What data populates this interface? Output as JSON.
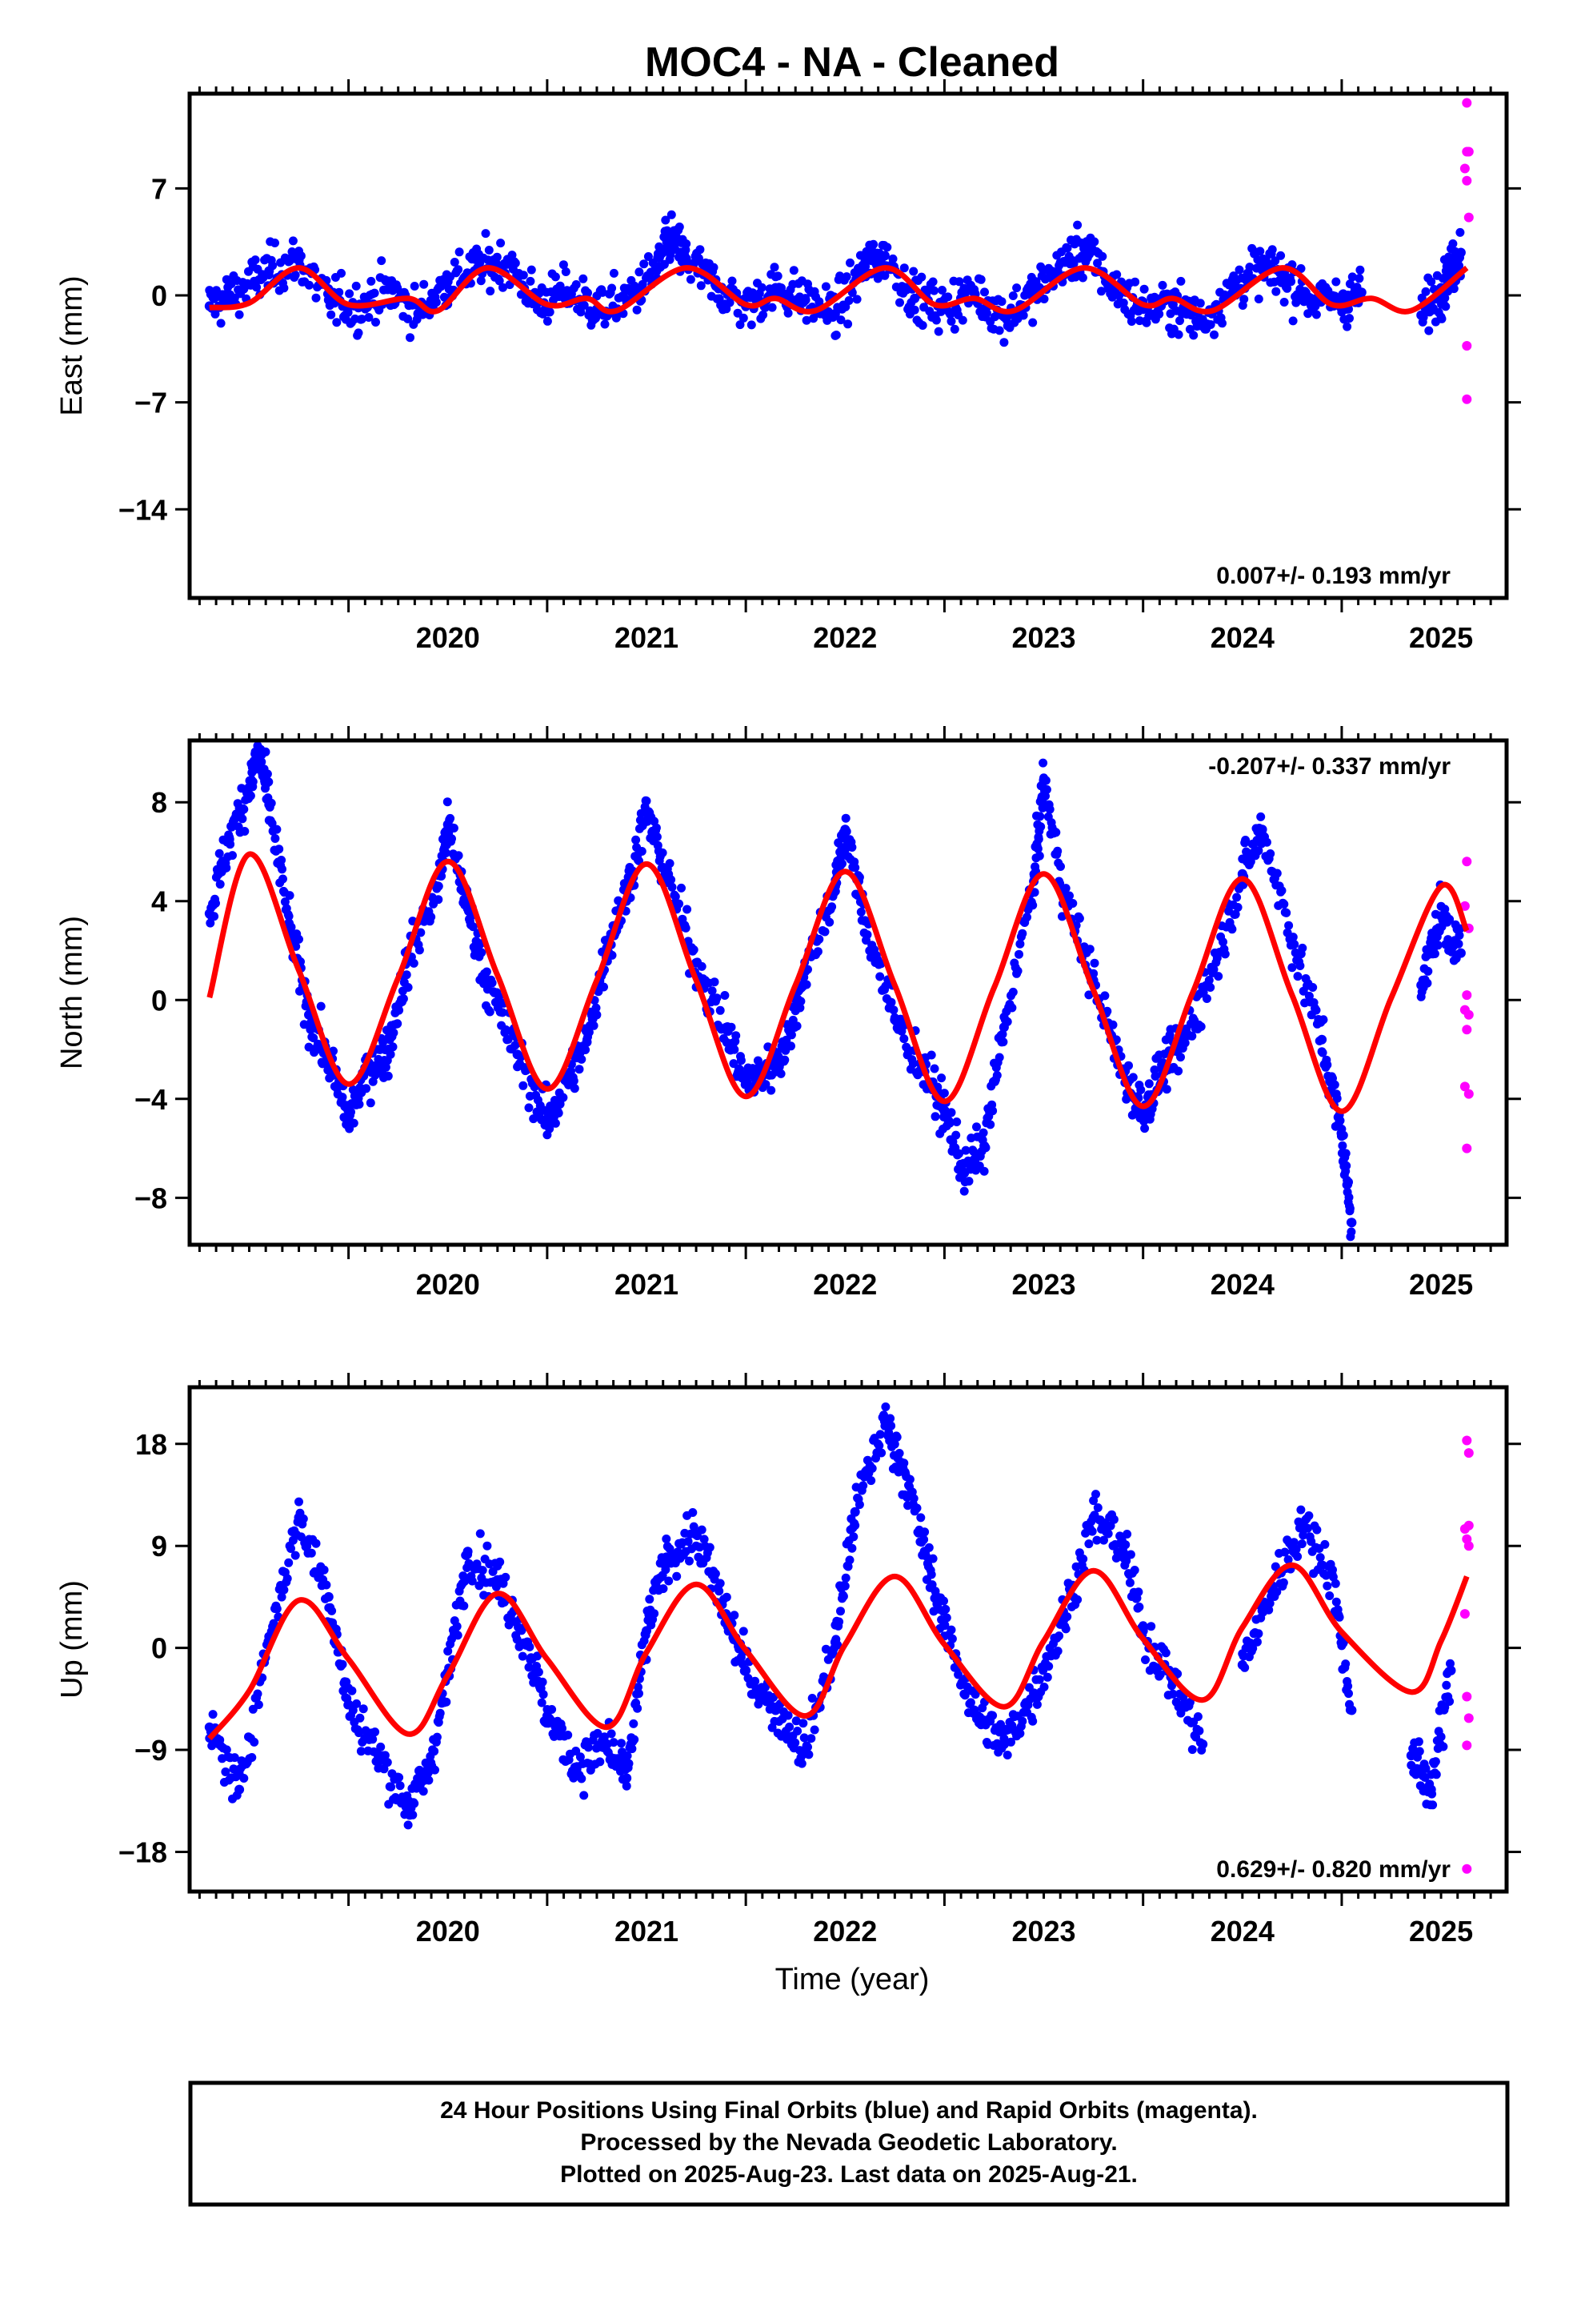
{
  "title": "MOC4  - NA - Cleaned",
  "xlabel": "Time (year)",
  "colors": {
    "final": "#0000ff",
    "rapid": "#ff00ff",
    "model": "#ff0000"
  },
  "footer": {
    "line1": "24 Hour Positions Using Final Orbits (blue) and Rapid Orbits (magenta).",
    "line2": "Processed by the Nevada Geodetic Laboratory.",
    "line3": "Plotted on 2025-Aug-23. Last data on 2025-Aug-21."
  },
  "chart_data": [
    {
      "type": "scatter",
      "ylabel": "East (mm)",
      "xlim": [
        2019.2,
        2025.83
      ],
      "ylim": [
        -19.8,
        13.2
      ],
      "yticks": [
        7,
        0,
        -7,
        -14
      ],
      "ytick_labels": [
        "7",
        "0",
        "−7",
        "−14"
      ],
      "xticks": [
        2020,
        2021,
        2022,
        2023,
        2024,
        2025
      ],
      "rate_label": "0.007+/- 0.193 mm/yr",
      "model": {
        "x": [
          2019.3,
          2019.5,
          2019.75,
          2020.0,
          2020.3,
          2020.45,
          2020.7,
          2021.0,
          2021.2,
          2021.35,
          2021.7,
          2022.0,
          2022.15,
          2022.35,
          2022.7,
          2022.95,
          2023.15,
          2023.35,
          2023.7,
          2024.0,
          2024.15,
          2024.35,
          2024.7,
          2024.95,
          2025.15,
          2025.35,
          2025.63
        ],
        "y": [
          -0.8,
          -0.5,
          1.8,
          -0.6,
          -0.2,
          -1.0,
          1.8,
          -0.6,
          -0.2,
          -1.0,
          1.8,
          -0.6,
          -0.2,
          -1.0,
          1.8,
          -0.6,
          -0.2,
          -1.0,
          1.8,
          -0.6,
          -0.2,
          -1.0,
          1.8,
          -0.6,
          -0.2,
          -1.0,
          1.8
        ]
      },
      "final": {
        "x": [
          2019.3,
          2019.45,
          2019.6,
          2019.75,
          2019.9,
          2020.05,
          2020.2,
          2020.35,
          2020.5,
          2020.65,
          2020.8,
          2020.95,
          2021.1,
          2021.25,
          2021.4,
          2021.55,
          2021.62,
          2021.7,
          2021.85,
          2022.0,
          2022.15,
          2022.3,
          2022.45,
          2022.6,
          2022.7,
          2022.85,
          2023.0,
          2023.15,
          2023.3,
          2023.45,
          2023.6,
          2023.72,
          2023.85,
          2024.0,
          2024.15,
          2024.3,
          2024.45,
          2024.6,
          2024.72,
          2024.85,
          2025.0,
          2025.1,
          2025.4,
          2025.5,
          2025.55,
          2025.6
        ],
        "y": [
          -0.7,
          0.3,
          1.6,
          2.3,
          -0.3,
          -0.8,
          0.4,
          -1.2,
          0.9,
          1.8,
          2.2,
          -0.5,
          0.3,
          -0.9,
          -0.3,
          1.6,
          3.8,
          2.4,
          0.6,
          -0.7,
          0.5,
          -0.3,
          -1.2,
          1.9,
          2.6,
          -0.2,
          -0.8,
          0.2,
          -1.4,
          0.1,
          2.2,
          2.9,
          0.5,
          -0.9,
          -0.6,
          -1.7,
          0.6,
          1.8,
          1.2,
          -0.3,
          -0.4,
          0.2,
          -1.3,
          0.5,
          1.6,
          2.8
        ]
      },
      "rapid": {
        "x": [
          2025.63,
          2025.63,
          2025.64,
          2025.62,
          2025.63,
          2025.64,
          2025.63,
          2025.63
        ],
        "y": [
          12.6,
          9.4,
          9.4,
          8.3,
          7.5,
          5.1,
          -3.3,
          -6.8
        ]
      }
    },
    {
      "type": "scatter",
      "ylabel": "North (mm)",
      "xlim": [
        2019.2,
        2025.83
      ],
      "ylim": [
        -9.9,
        10.5
      ],
      "yticks": [
        8,
        4,
        0,
        -4,
        -8
      ],
      "ytick_labels": [
        "8",
        "4",
        "0",
        "−4",
        "−8"
      ],
      "xticks": [
        2020,
        2021,
        2022,
        2023,
        2024,
        2025
      ],
      "rate_label": "-0.207+/- 0.337 mm/yr",
      "model": {
        "x": [
          2019.3,
          2019.5,
          2019.75,
          2020.0,
          2020.25,
          2020.5,
          2020.75,
          2021.0,
          2021.25,
          2021.5,
          2021.75,
          2022.0,
          2022.25,
          2022.5,
          2022.75,
          2023.0,
          2023.25,
          2023.5,
          2023.75,
          2024.0,
          2024.25,
          2024.5,
          2024.75,
          2025.0,
          2025.25,
          2025.5,
          2025.63
        ],
        "y": [
          0.1,
          5.9,
          1.2,
          -3.4,
          0.9,
          5.6,
          1.0,
          -3.6,
          0.8,
          5.5,
          0.8,
          -3.9,
          0.6,
          5.2,
          0.6,
          -4.1,
          0.5,
          5.1,
          0.4,
          -4.3,
          0.3,
          4.9,
          0.2,
          -4.5,
          0.1,
          4.6,
          2.8
        ]
      },
      "final": {
        "x": [
          2019.3,
          2019.4,
          2019.5,
          2019.55,
          2019.6,
          2019.7,
          2019.8,
          2019.9,
          2020.0,
          2020.1,
          2020.2,
          2020.3,
          2020.45,
          2020.5,
          2020.6,
          2020.7,
          2020.85,
          2021.0,
          2021.1,
          2021.2,
          2021.3,
          2021.4,
          2021.5,
          2021.6,
          2021.75,
          2021.9,
          2022.0,
          2022.1,
          2022.2,
          2022.3,
          2022.45,
          2022.5,
          2022.6,
          2022.75,
          2022.9,
          2023.0,
          2023.1,
          2023.2,
          2023.3,
          2023.45,
          2023.5,
          2023.6,
          2023.75,
          2023.9,
          2024.0,
          2024.1,
          2024.2,
          2024.35,
          2024.5,
          2024.6,
          2024.75,
          2024.9,
          2025.0,
          2025.05,
          2025.4,
          2025.5,
          2025.6
        ],
        "y": [
          3.5,
          6.5,
          8.6,
          10.1,
          7.9,
          3.1,
          -0.6,
          -2.5,
          -4.8,
          -2.8,
          -2.0,
          1.6,
          4.6,
          7.1,
          3.7,
          0.6,
          -2.2,
          -5.0,
          -3.3,
          -1.7,
          2.1,
          4.4,
          7.6,
          5.1,
          1.5,
          -1.2,
          -3.4,
          -2.9,
          -1.9,
          1.2,
          4.6,
          6.9,
          3.2,
          -0.8,
          -2.9,
          -4.5,
          -7.0,
          -5.9,
          -1.1,
          4.8,
          8.9,
          4.3,
          0.8,
          -3.0,
          -4.5,
          -2.8,
          -1.8,
          1.2,
          5.1,
          6.9,
          2.5,
          -1.6,
          -5.5,
          -9.0,
          0.6,
          3.4,
          1.9
        ]
      },
      "rapid": {
        "x": [
          2025.63,
          2025.62,
          2025.64,
          2025.63,
          2025.62,
          2025.64,
          2025.63,
          2025.62,
          2025.64,
          2025.63
        ],
        "y": [
          5.6,
          3.8,
          2.9,
          0.2,
          -0.4,
          -0.6,
          -1.2,
          -3.5,
          -3.8,
          -6.0
        ]
      }
    },
    {
      "type": "scatter",
      "ylabel": "Up (mm)",
      "xlim": [
        2019.2,
        2025.83
      ],
      "ylim": [
        -21.5,
        23.0
      ],
      "yticks": [
        18,
        9,
        0,
        -9,
        -18
      ],
      "ytick_labels": [
        "18",
        "9",
        "0",
        "−9",
        "−18"
      ],
      "xticks": [
        2020,
        2021,
        2022,
        2023,
        2024,
        2025
      ],
      "rate_label": "0.629+/- 0.820 mm/yr",
      "model": {
        "x": [
          2019.3,
          2019.5,
          2019.75,
          2020.0,
          2020.3,
          2020.5,
          2020.75,
          2021.0,
          2021.3,
          2021.5,
          2021.75,
          2022.0,
          2022.3,
          2022.5,
          2022.75,
          2023.0,
          2023.3,
          2023.5,
          2023.75,
          2024.0,
          2024.3,
          2024.5,
          2024.75,
          2025.0,
          2025.35,
          2025.5,
          2025.63
        ],
        "y": [
          -8.0,
          -3.8,
          4.2,
          -1.0,
          -7.6,
          -2.4,
          4.8,
          -1.0,
          -7.0,
          -0.4,
          5.6,
          -0.2,
          -6.0,
          0.3,
          6.3,
          0.3,
          -5.2,
          0.6,
          6.8,
          0.8,
          -4.6,
          1.8,
          7.3,
          1.4,
          -3.9,
          0.6,
          6.3
        ]
      },
      "final": {
        "x": [
          2019.3,
          2019.45,
          2019.6,
          2019.75,
          2019.9,
          2020.0,
          2020.15,
          2020.3,
          2020.4,
          2020.5,
          2020.6,
          2020.75,
          2020.9,
          2021.0,
          2021.15,
          2021.3,
          2021.4,
          2021.5,
          2021.6,
          2021.75,
          2021.9,
          2022.0,
          2022.15,
          2022.3,
          2022.45,
          2022.55,
          2022.7,
          2022.8,
          2022.9,
          2023.0,
          2023.15,
          2023.3,
          2023.45,
          2023.6,
          2023.75,
          2023.9,
          2024.0,
          2024.15,
          2024.3,
          2024.5,
          2024.65,
          2024.8,
          2024.95,
          2025.05,
          2025.35,
          2025.45,
          2025.55
        ],
        "y": [
          -7.0,
          -12.5,
          1.0,
          11.5,
          4.5,
          -5.0,
          -9.5,
          -14.0,
          -11.0,
          -2.5,
          8.5,
          6.0,
          0.5,
          -6.0,
          -10.5,
          -8.5,
          -11.5,
          1.5,
          8.0,
          10.0,
          3.0,
          -2.0,
          -5.5,
          -9.0,
          0.5,
          12.0,
          20.0,
          15.5,
          8.5,
          2.0,
          -5.5,
          -8.5,
          -4.0,
          2.5,
          11.5,
          9.0,
          1.5,
          -3.0,
          -8.5,
          -1.5,
          5.0,
          11.0,
          6.5,
          -5.5,
          -9.5,
          -12.5,
          -2.0
        ]
      },
      "rapid": {
        "x": [
          2025.63,
          2025.64,
          2025.62,
          2025.64,
          2025.63,
          2025.64,
          2025.62,
          2025.63,
          2025.64,
          2025.63,
          2025.63
        ],
        "y": [
          18.3,
          17.2,
          10.5,
          10.8,
          9.6,
          9.0,
          3.0,
          -4.3,
          -6.2,
          -8.6,
          -19.5
        ]
      }
    }
  ]
}
